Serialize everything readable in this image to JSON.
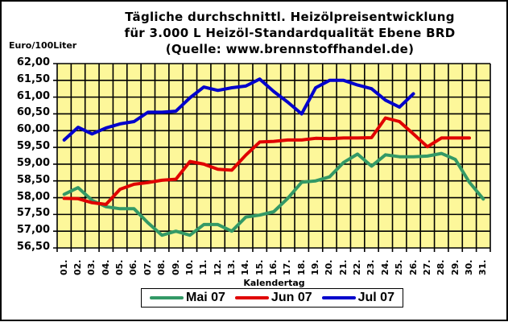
{
  "chart_data": {
    "type": "line",
    "title": "Tägliche durchschnittl. Heizölpreisentwicklung",
    "subtitle": "für 3.000 L Heizöl-Standardqualität Ebene BRD",
    "source": "(Quelle: www.brennstoffhandel.de)",
    "xlabel": "Kalendertag",
    "ylabel": "Euro/100Liter",
    "ylim": [
      56.5,
      62.0
    ],
    "ytick_labels": [
      "62,00",
      "61,50",
      "61,00",
      "60,50",
      "60,00",
      "59,50",
      "59,00",
      "58,50",
      "58,00",
      "57,50",
      "57,00",
      "56,50"
    ],
    "categories": [
      "01.",
      "02.",
      "03.",
      "04.",
      "05.",
      "06.",
      "07.",
      "08.",
      "09.",
      "10.",
      "11.",
      "12.",
      "13.",
      "14.",
      "15.",
      "16.",
      "17.",
      "18.",
      "19.",
      "20.",
      "21.",
      "22.",
      "23.",
      "24.",
      "25.",
      "26.",
      "27.",
      "28.",
      "29.",
      "30.",
      "31."
    ],
    "grid": true,
    "legend_position": "bottom",
    "series": [
      {
        "name": "Mai 07",
        "color": "#339966",
        "values": [
          58.1,
          58.3,
          57.92,
          57.73,
          57.67,
          57.67,
          57.25,
          56.88,
          57.0,
          56.88,
          57.2,
          57.2,
          57.0,
          57.42,
          57.48,
          57.58,
          57.98,
          58.46,
          58.5,
          58.62,
          59.05,
          59.3,
          58.94,
          59.28,
          59.22,
          59.22,
          59.24,
          59.32,
          59.14,
          58.46,
          57.96
        ]
      },
      {
        "name": "Jun 07",
        "color": "#e00000",
        "values": [
          57.98,
          57.97,
          57.85,
          57.8,
          58.25,
          58.4,
          58.45,
          58.52,
          58.55,
          59.08,
          59.0,
          58.85,
          58.82,
          59.27,
          59.66,
          59.68,
          59.72,
          59.72,
          59.77,
          59.76,
          59.78,
          59.78,
          59.79,
          60.38,
          60.27,
          59.9,
          59.52,
          59.78,
          59.78,
          59.78,
          null
        ]
      },
      {
        "name": "Jul 07",
        "color": "#0000cc",
        "values": [
          59.72,
          60.1,
          59.9,
          60.08,
          60.2,
          60.27,
          60.55,
          60.55,
          60.58,
          60.98,
          61.3,
          61.2,
          61.28,
          61.33,
          61.54,
          61.17,
          60.85,
          60.5,
          61.28,
          61.5,
          61.5,
          61.36,
          61.25,
          60.91,
          60.7,
          61.1,
          null,
          null,
          null,
          null,
          null
        ]
      }
    ]
  },
  "page": {
    "title_line1": "Tägliche durchschnittl. Heizölpreisentwicklung",
    "title_line2": "für 3.000 L Heizöl-Standardqualität Ebene BRD",
    "title_line3": "(Quelle: www.brennstoffhandel.de)",
    "ylabel": "Euro/100Liter",
    "xlabel": "Kalendertag",
    "plot_background": "#fdf79a",
    "legend": [
      {
        "label": "Mai 07",
        "color": "#339966"
      },
      {
        "label": "Jun 07",
        "color": "#e00000"
      },
      {
        "label": "Jul 07",
        "color": "#0000cc"
      }
    ]
  }
}
